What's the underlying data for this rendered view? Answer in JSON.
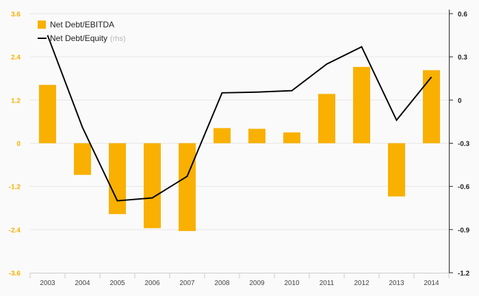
{
  "chart_data": {
    "type": "bar",
    "categories": [
      "2003",
      "2004",
      "2005",
      "2006",
      "2007",
      "2008",
      "2009",
      "2010",
      "2011",
      "2012",
      "2013",
      "2014"
    ],
    "series": [
      {
        "name": "Net Debt/EBITDA",
        "type": "bar",
        "axis": "left",
        "color": "#f9b000",
        "values": [
          1.62,
          -0.88,
          -1.97,
          -2.36,
          -2.44,
          0.42,
          0.4,
          0.3,
          1.37,
          2.12,
          -1.48,
          2.03
        ]
      },
      {
        "name": "Net Debt/Equity",
        "name_suffix": "(rhs)",
        "type": "line",
        "axis": "right",
        "color": "#000000",
        "values": [
          0.45,
          -0.19,
          -0.7,
          -0.68,
          -0.53,
          0.05,
          0.055,
          0.065,
          0.25,
          0.37,
          -0.14,
          0.16
        ]
      }
    ],
    "y_left": {
      "ticks": [
        "3.6",
        "2.4",
        "1.2",
        "0",
        "-1.2",
        "-2.4",
        "-3.6"
      ],
      "range": [
        -3.6,
        3.6
      ],
      "tick_color": "#f9b000"
    },
    "y_right": {
      "ticks": [
        "0.6",
        "0.3",
        "0",
        "-0.3",
        "-0.6",
        "-0.9",
        "-1.2"
      ],
      "range": [
        -1.2,
        0.6
      ]
    },
    "grid": true,
    "legend": "top-left"
  }
}
